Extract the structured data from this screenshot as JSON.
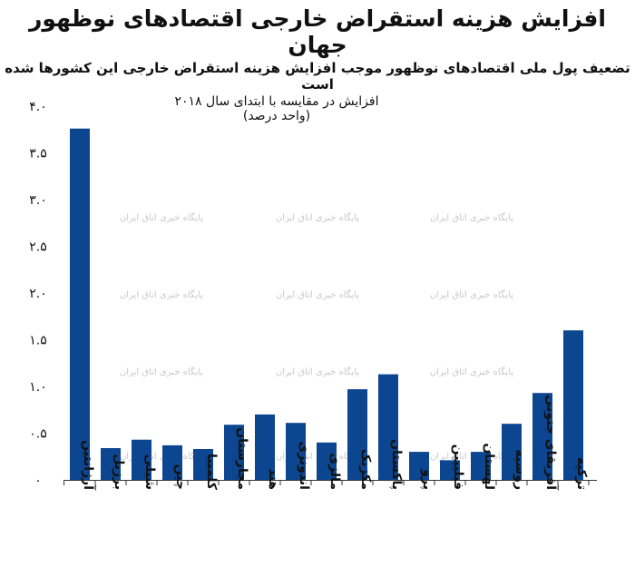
{
  "chart_data": {
    "type": "bar",
    "title": "افزایش هزینه استقراض خارجی اقتصادهای نوظهور جهان",
    "subtitle": "تضعیف پول ملی اقتصادهای نوظهور موجب افزایش هزینه استقراض خارجی این کشورها شده است",
    "ylabel": "افزایش در مقایسه با ابتدای سال ۲۰۱۸ (واحد درصد)",
    "categories": [
      "آرژانتین",
      "برزیل",
      "شیلی",
      "چین",
      "کلمبیا",
      "مجارستان",
      "هند",
      "اندونزی",
      "مالزی",
      "مکزیک",
      "پاکستان",
      "پرو",
      "فیلیپین",
      "لهستان",
      "روسیه",
      "آفریقای جنوبی",
      "ترکیه"
    ],
    "values": [
      3.76,
      0.34,
      0.43,
      0.37,
      0.33,
      0.59,
      0.7,
      0.61,
      0.4,
      0.97,
      1.13,
      0.3,
      0.21,
      0.3,
      0.6,
      0.93,
      1.6
    ],
    "ylim": [
      0,
      4.0
    ],
    "yticks": [
      0,
      0.5,
      1.0,
      1.5,
      2.0,
      2.5,
      3.0,
      3.5,
      4.0
    ],
    "ytick_labels": [
      "۰",
      "۰.۵",
      "۱.۰",
      "۱.۵",
      "۲.۰",
      "۲.۵",
      "۳.۰",
      "۳.۵",
      "۴.۰"
    ],
    "bar_color": "#0d4690",
    "grid": false,
    "watermark": "پایگاه خبری اتاق ایران"
  }
}
